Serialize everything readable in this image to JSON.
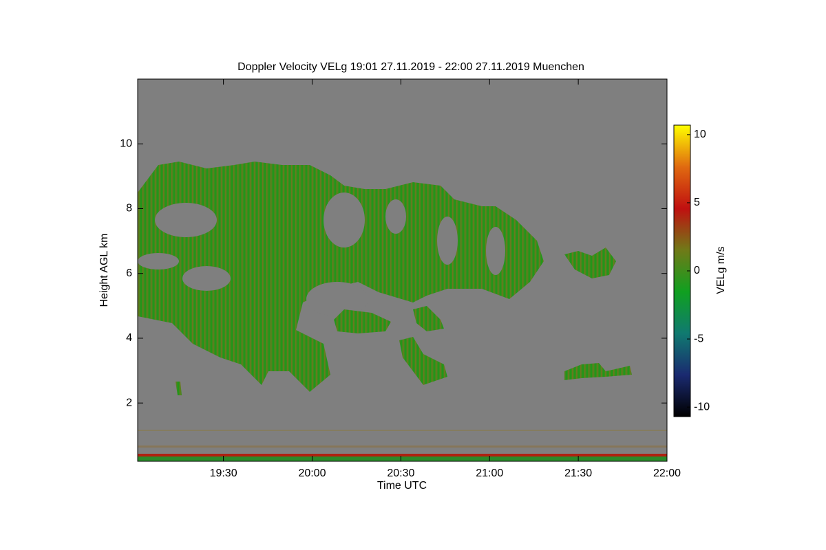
{
  "chart_data": {
    "type": "heatmap",
    "title": "Doppler Velocity VELg   19:01 27.11.2019 - 22:00 27.11.2019 Muenchen",
    "x_label": "Time UTC",
    "y_label": "Height AGL km",
    "xlim": [
      1141,
      1320
    ],
    "xticks": [
      {
        "value": 1170,
        "label": "19:30"
      },
      {
        "value": 1200,
        "label": "20:00"
      },
      {
        "value": 1230,
        "label": "20:30"
      },
      {
        "value": 1260,
        "label": "21:00"
      },
      {
        "value": 1290,
        "label": "21:30"
      },
      {
        "value": 1320,
        "label": "22:00"
      }
    ],
    "ylim": [
      0.2,
      12
    ],
    "yticks": [
      2,
      4,
      6,
      8,
      10
    ],
    "colorbar": {
      "label": "VELg m/s",
      "lim": [
        -10.7,
        10.7
      ],
      "ticks": [
        -10,
        -5,
        0,
        5,
        10
      ],
      "colormap": [
        "#000000",
        "#1a2a70",
        "#107a70",
        "#10a020",
        "#707a18",
        "#c01010",
        "#e06a10",
        "#ffff00"
      ]
    },
    "background_color": "#7f7f7f"
  }
}
